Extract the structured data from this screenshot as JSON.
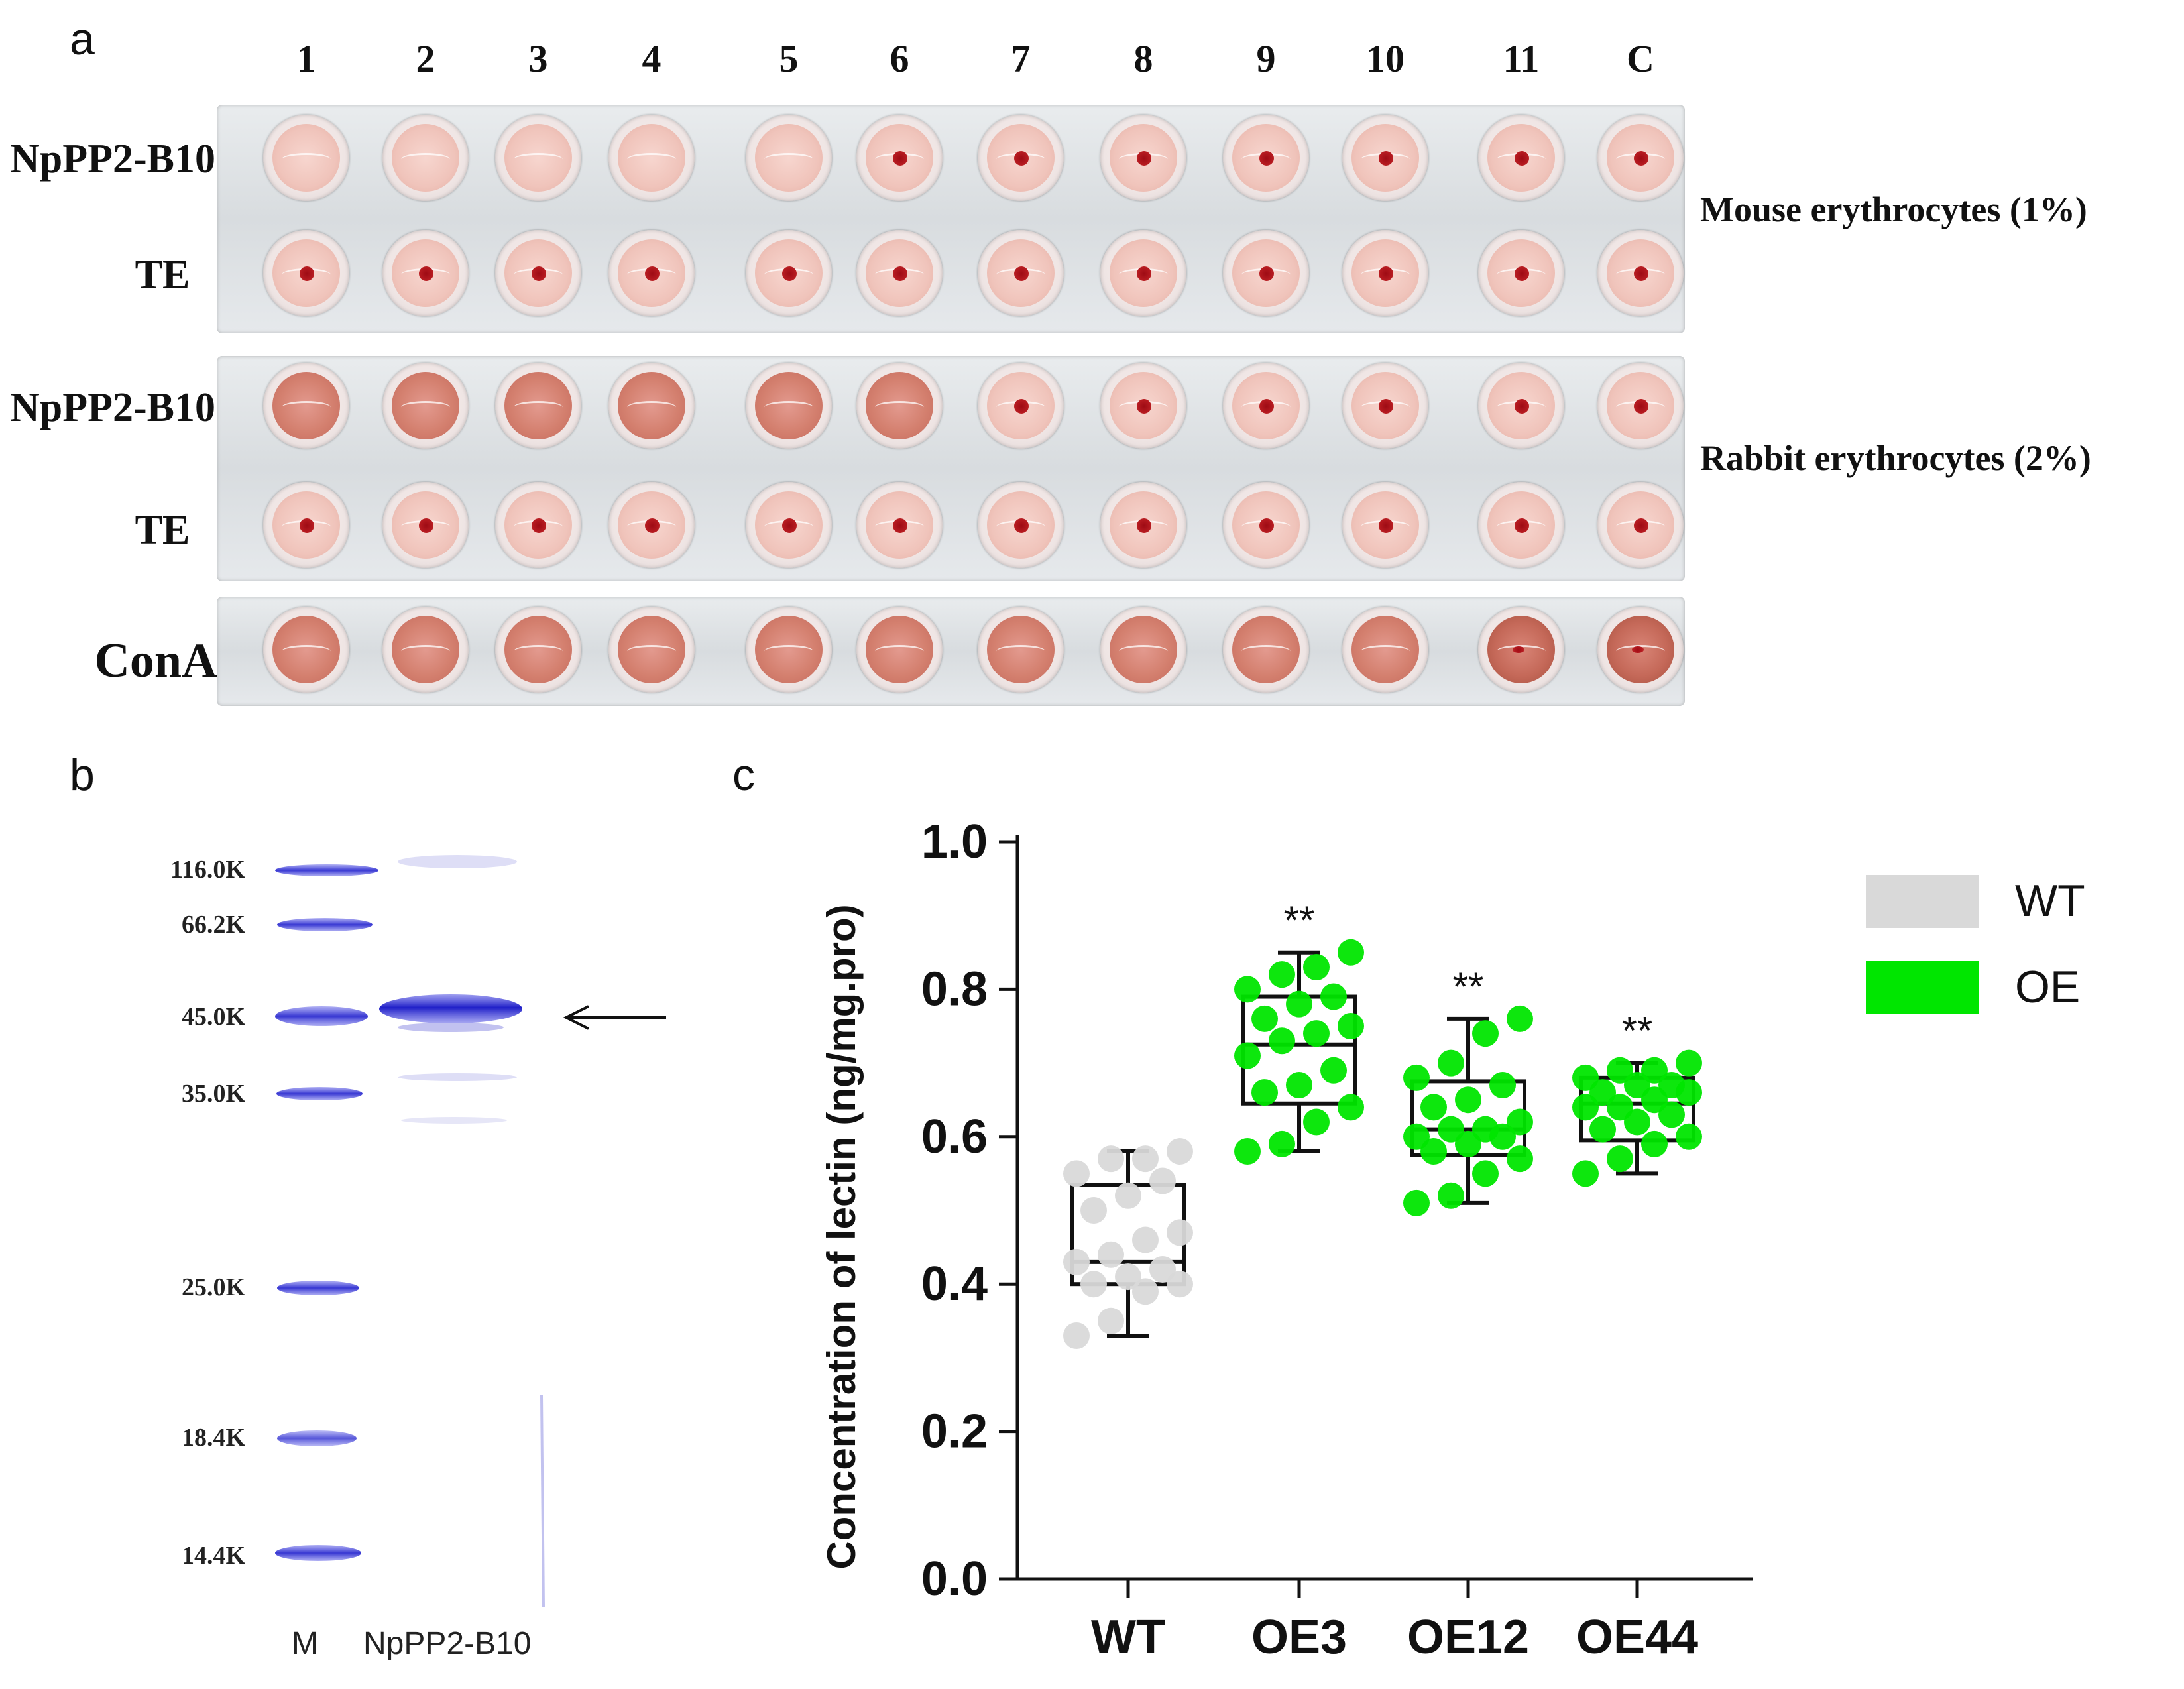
{
  "panel_a": {
    "letter": "a",
    "columns": [
      "1",
      "2",
      "3",
      "4",
      "5",
      "6",
      "7",
      "8",
      "9",
      "10",
      "11",
      "C"
    ],
    "rows": [
      {
        "label": "NpPP2-B10",
        "pattern": [
          "neg",
          "neg",
          "neg",
          "neg",
          "neg",
          "dot",
          "dot",
          "dot",
          "dot",
          "dot",
          "dot",
          "dot"
        ]
      },
      {
        "label": "TE",
        "pattern": [
          "dot",
          "dot",
          "dot",
          "dot",
          "dot",
          "dot",
          "dot",
          "dot",
          "dot",
          "dot",
          "dot",
          "dot"
        ]
      },
      {
        "label": "NpPP2-B10",
        "pattern": [
          "agg",
          "agg",
          "agg",
          "agg",
          "agg",
          "agg",
          "dot",
          "dot",
          "dot",
          "dot",
          "dot",
          "dot"
        ]
      },
      {
        "label": "TE",
        "pattern": [
          "dot",
          "dot",
          "dot",
          "dot",
          "dot",
          "dot",
          "dot",
          "dot",
          "dot",
          "dot",
          "dot",
          "dot"
        ]
      },
      {
        "label": "ConA",
        "pattern": [
          "agg",
          "agg",
          "agg",
          "agg",
          "agg",
          "agg",
          "agg",
          "agg",
          "agg",
          "agg",
          "dot",
          "dot"
        ]
      }
    ],
    "species": [
      "Mouse erythrocytes (1%)",
      "Rabbit erythrocytes (2%)"
    ]
  },
  "panel_b": {
    "letter": "b",
    "markers": [
      "116.0K",
      "66.2K",
      "45.0K",
      "35.0K",
      "25.0K",
      "18.4K",
      "14.4K"
    ],
    "lanes": [
      "M",
      "NpPP2-B10"
    ],
    "band_color": "#3b3bd6"
  },
  "panel_c": {
    "letter": "c",
    "chart_data": {
      "type": "box",
      "title": "",
      "xlabel": "",
      "ylabel": "Concentration of lectin (ng/mg.pro)",
      "ylim": [
        0.0,
        1.0
      ],
      "yticks": [
        "0.0",
        "0.2",
        "0.4",
        "0.6",
        "0.8",
        "1.0"
      ],
      "categories": [
        "WT",
        "OE3",
        "OE12",
        "OE44"
      ],
      "groups": [
        "WT",
        "OE",
        "OE",
        "OE"
      ],
      "legend": [
        {
          "name": "WT",
          "color": "#d9d9d9"
        },
        {
          "name": "OE",
          "color": "#00e600"
        }
      ],
      "significance": [
        "",
        "**",
        "**",
        "**"
      ],
      "box_stats": [
        {
          "min": 0.33,
          "q1": 0.4,
          "median": 0.43,
          "q3": 0.535,
          "max": 0.58
        },
        {
          "min": 0.58,
          "q1": 0.645,
          "median": 0.725,
          "q3": 0.79,
          "max": 0.85
        },
        {
          "min": 0.51,
          "q1": 0.575,
          "median": 0.61,
          "q3": 0.675,
          "max": 0.76
        },
        {
          "min": 0.55,
          "q1": 0.595,
          "median": 0.645,
          "q3": 0.68,
          "max": 0.7
        }
      ],
      "points": [
        [
          0.33,
          0.35,
          0.39,
          0.4,
          0.4,
          0.41,
          0.42,
          0.43,
          0.44,
          0.46,
          0.47,
          0.5,
          0.52,
          0.54,
          0.55,
          0.57,
          0.57,
          0.58
        ],
        [
          0.58,
          0.59,
          0.62,
          0.64,
          0.66,
          0.67,
          0.69,
          0.71,
          0.73,
          0.74,
          0.75,
          0.76,
          0.78,
          0.79,
          0.8,
          0.82,
          0.83,
          0.85
        ],
        [
          0.51,
          0.52,
          0.55,
          0.57,
          0.58,
          0.59,
          0.6,
          0.6,
          0.61,
          0.61,
          0.62,
          0.64,
          0.65,
          0.67,
          0.68,
          0.7,
          0.74,
          0.76
        ],
        [
          0.55,
          0.57,
          0.59,
          0.6,
          0.61,
          0.62,
          0.63,
          0.64,
          0.64,
          0.65,
          0.66,
          0.66,
          0.67,
          0.67,
          0.68,
          0.69,
          0.69,
          0.7
        ]
      ]
    }
  }
}
